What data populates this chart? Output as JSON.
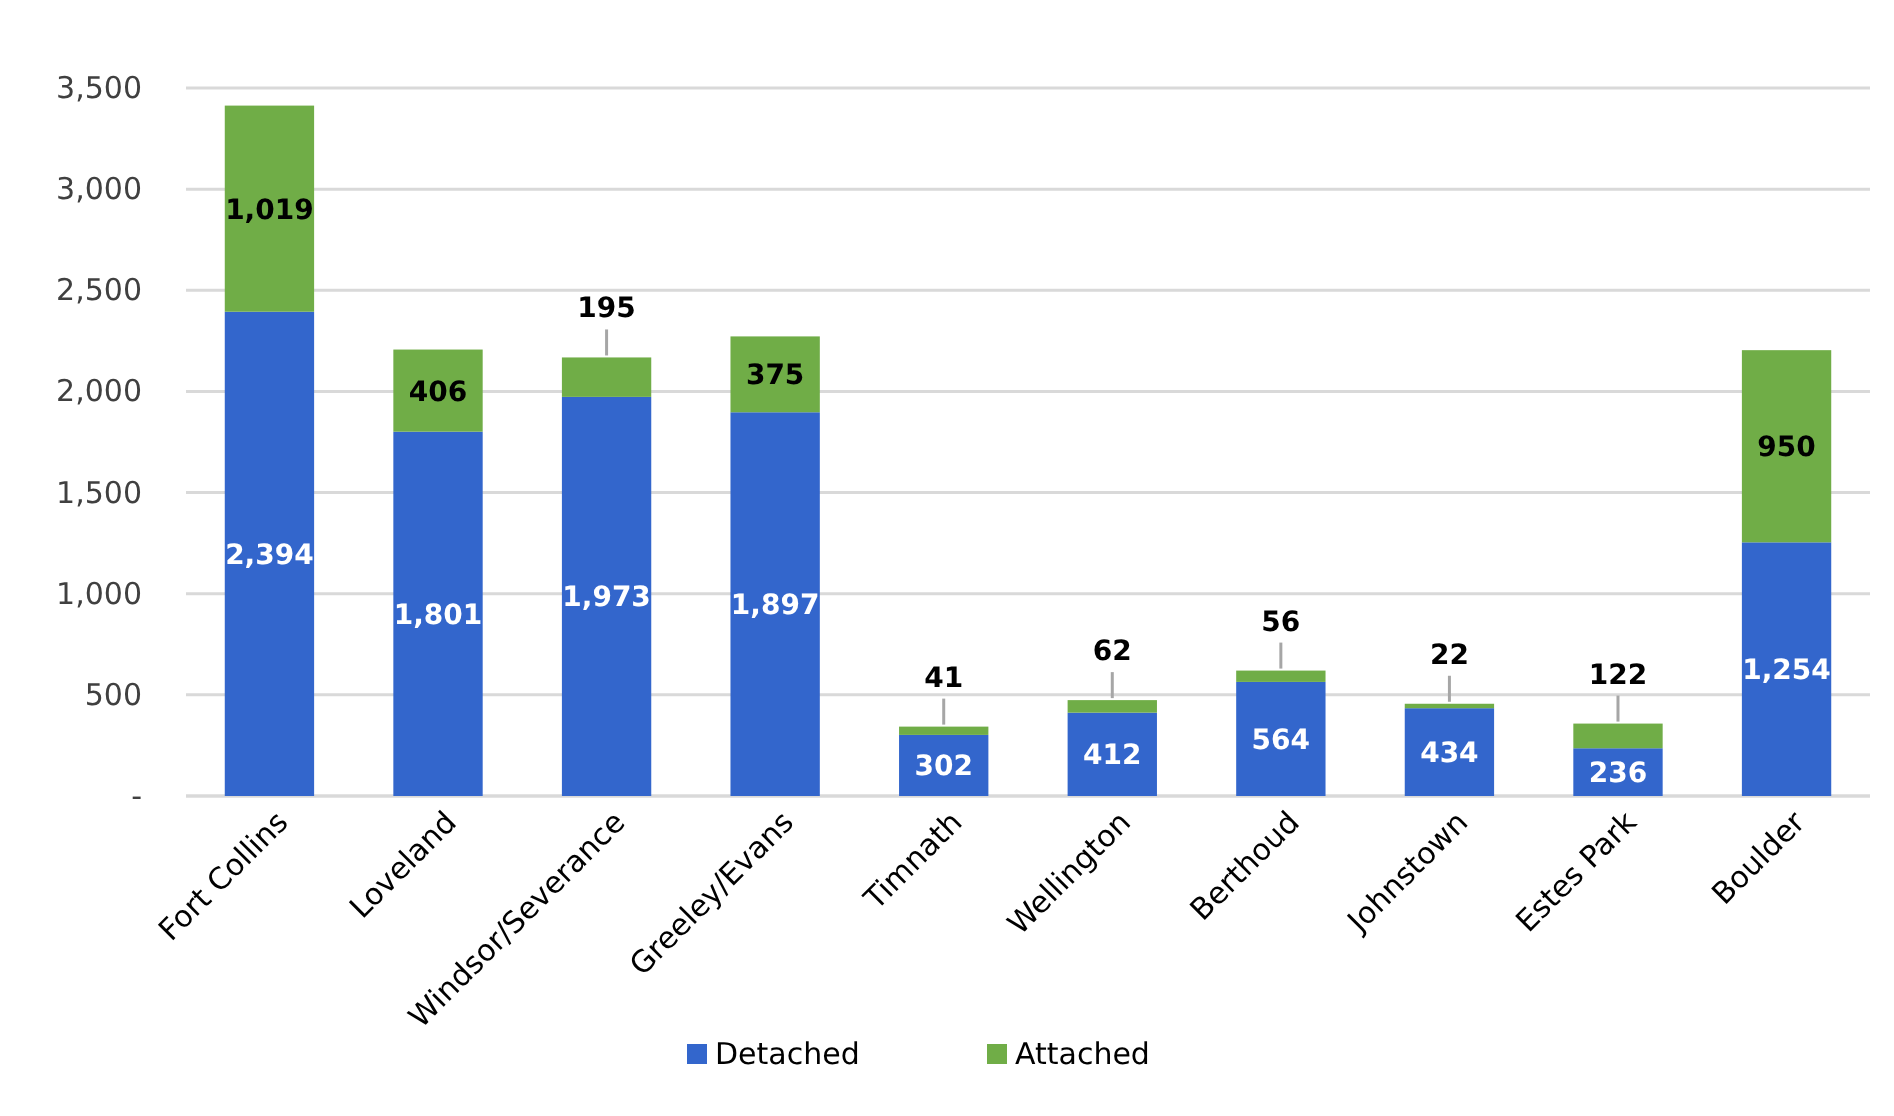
{
  "chart_data": {
    "type": "bar",
    "stacked": true,
    "categories": [
      "Fort Collins",
      "Loveland",
      "Windsor/Severance",
      "Greeley/Evans",
      "Timnath",
      "Wellington",
      "Berthoud",
      "Johnstown",
      "Estes Park",
      "Boulder"
    ],
    "series": [
      {
        "name": "Detached",
        "color": "#3366cc",
        "values": [
          2394,
          1801,
          1973,
          1897,
          302,
          412,
          564,
          434,
          236,
          1254
        ],
        "value_labels": [
          "2,394",
          "1,801",
          "1,973",
          "1,897",
          "302",
          "412",
          "564",
          "434",
          "236",
          "1,254"
        ]
      },
      {
        "name": "Attached",
        "color": "#70ad47",
        "values": [
          1019,
          406,
          195,
          375,
          41,
          62,
          56,
          22,
          122,
          950
        ],
        "value_labels": [
          "1,019",
          "406",
          "195",
          "375",
          "41",
          "62",
          "56",
          "22",
          "122",
          "950"
        ]
      }
    ],
    "ylim": [
      0,
      3500
    ],
    "yticks": [
      {
        "value": 0,
        "label": "-"
      },
      {
        "value": 500,
        "label": "500"
      },
      {
        "value": 1000,
        "label": "1,000"
      },
      {
        "value": 1500,
        "label": "1,500"
      },
      {
        "value": 2000,
        "label": "2,000"
      },
      {
        "value": 2500,
        "label": "2,500"
      },
      {
        "value": 3000,
        "label": "3,000"
      },
      {
        "value": 3500,
        "label": "3,500"
      }
    ],
    "grid": "y",
    "legend": "bottom"
  }
}
